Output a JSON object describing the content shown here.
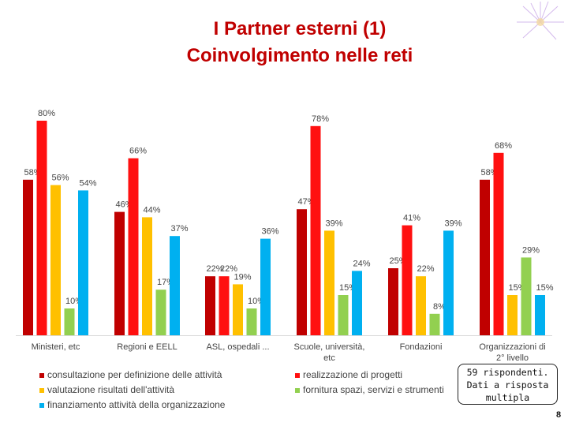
{
  "title_line1": "I Partner esterni (1)",
  "title_line2": "Coinvolgimento nelle reti",
  "note": {
    "line1": "59 rispondenti.",
    "line2": "Dati a risposta",
    "line3": "multipla"
  },
  "page_number": "8",
  "chart_data": {
    "type": "bar",
    "ylim": [
      0,
      80
    ],
    "categories": [
      "Ministeri, etc",
      "Regioni e EELL",
      "ASL, ospedali ...",
      "Scuole, università, etc",
      "Fondazioni",
      "Organizzazioni di 2° livello"
    ],
    "series": [
      {
        "name": "consultazione per definizione delle attività",
        "color": "#c00000",
        "values": [
          58,
          46,
          22,
          47,
          25,
          58
        ]
      },
      {
        "name": "realizzazione di progetti",
        "color": "#ff1010",
        "values": [
          80,
          66,
          22,
          78,
          41,
          68
        ]
      },
      {
        "name": "valutazione risultati dell'attività",
        "color": "#ffc000",
        "values": [
          56,
          44,
          19,
          39,
          22,
          15
        ]
      },
      {
        "name": "fornitura  spazi, servizi e strumenti",
        "color": "#92d050",
        "values": [
          10,
          17,
          10,
          15,
          8,
          29
        ]
      },
      {
        "name": "finanziamento attività della organizzazione",
        "color": "#00b0f0",
        "values": [
          54,
          37,
          36,
          24,
          39,
          15
        ]
      }
    ],
    "data_labels": [
      [
        "58%",
        "80%",
        "56%",
        "10%",
        "54%"
      ],
      [
        "46%",
        "66%",
        "44%",
        "17%",
        "37%"
      ],
      [
        "22%",
        "22%",
        "19%",
        "10%",
        "36%"
      ],
      [
        "47%",
        "78%",
        "39%",
        "15%",
        "24%"
      ],
      [
        "25%",
        "41%",
        "22%",
        "8%",
        "39%"
      ],
      [
        "58%",
        "68%",
        "15%",
        "29%",
        "15%"
      ]
    ]
  }
}
